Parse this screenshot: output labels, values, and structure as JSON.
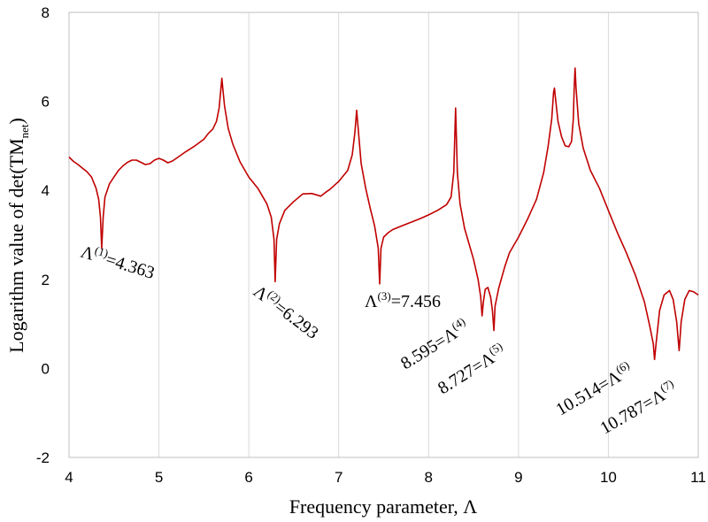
{
  "chart_data": {
    "type": "line",
    "title": "",
    "xlabel": "Frequency parameter, Λ",
    "ylabel": "Logarithm value of det(TM",
    "ylabel_sub": "net",
    "ylabel_close": ")",
    "xlim": [
      4,
      11
    ],
    "ylim": [
      -2,
      8
    ],
    "x_ticks": [
      4,
      5,
      6,
      7,
      8,
      9,
      10,
      11
    ],
    "y_ticks": [
      -2,
      0,
      2,
      4,
      6,
      8
    ],
    "grid": "vertical",
    "line_color": "#c00000",
    "series": [
      {
        "x": [
          4.0,
          4.05,
          4.1,
          4.15,
          4.2,
          4.25,
          4.3,
          4.33,
          4.35,
          4.363,
          4.38,
          4.4,
          4.45,
          4.5,
          4.55,
          4.6,
          4.65,
          4.7,
          4.75,
          4.8,
          4.85,
          4.9,
          4.95,
          5.0,
          5.05,
          5.1,
          5.15,
          5.2,
          5.3,
          5.4,
          5.5,
          5.55,
          5.6,
          5.64,
          5.67,
          5.69,
          5.7,
          5.71,
          5.73,
          5.77,
          5.82,
          5.9,
          6.0,
          6.1,
          6.2,
          6.25,
          6.28,
          6.293,
          6.31,
          6.34,
          6.4,
          6.5,
          6.6,
          6.7,
          6.8,
          6.85,
          6.9,
          7.0,
          7.1,
          7.15,
          7.18,
          7.2,
          7.22,
          7.25,
          7.3,
          7.35,
          7.4,
          7.44,
          7.456,
          7.47,
          7.5,
          7.55,
          7.6,
          7.7,
          7.8,
          7.9,
          8.0,
          8.1,
          8.2,
          8.25,
          8.28,
          8.3,
          8.32,
          8.35,
          8.4,
          8.45,
          8.5,
          8.55,
          8.58,
          8.595,
          8.61,
          8.63,
          8.66,
          8.69,
          8.71,
          8.727,
          8.74,
          8.78,
          8.85,
          8.9,
          9.0,
          9.1,
          9.2,
          9.28,
          9.33,
          9.37,
          9.39,
          9.4,
          9.41,
          9.44,
          9.48,
          9.52,
          9.56,
          9.59,
          9.61,
          9.62,
          9.63,
          9.64,
          9.67,
          9.72,
          9.8,
          9.9,
          10.0,
          10.1,
          10.2,
          10.3,
          10.4,
          10.46,
          10.5,
          10.514,
          10.53,
          10.57,
          10.62,
          10.68,
          10.72,
          10.76,
          10.787,
          10.81,
          10.85,
          10.9,
          10.95,
          11.0
        ],
        "y": [
          4.75,
          4.65,
          4.58,
          4.5,
          4.42,
          4.3,
          4.05,
          3.8,
          3.4,
          2.7,
          3.4,
          3.85,
          4.15,
          4.3,
          4.45,
          4.55,
          4.63,
          4.68,
          4.68,
          4.63,
          4.58,
          4.6,
          4.68,
          4.72,
          4.68,
          4.62,
          4.66,
          4.73,
          4.87,
          5.0,
          5.15,
          5.28,
          5.38,
          5.55,
          5.85,
          6.3,
          6.52,
          6.3,
          5.9,
          5.4,
          5.05,
          4.65,
          4.3,
          4.05,
          3.7,
          3.4,
          2.9,
          1.95,
          2.9,
          3.25,
          3.55,
          3.75,
          3.92,
          3.93,
          3.87,
          3.95,
          4.02,
          4.2,
          4.45,
          4.8,
          5.3,
          5.8,
          5.3,
          4.6,
          4.05,
          3.6,
          3.2,
          2.7,
          1.9,
          2.7,
          2.95,
          3.05,
          3.12,
          3.2,
          3.28,
          3.36,
          3.45,
          3.55,
          3.68,
          3.85,
          4.4,
          5.85,
          4.4,
          3.7,
          3.15,
          2.8,
          2.45,
          2.0,
          1.6,
          1.18,
          1.5,
          1.78,
          1.82,
          1.6,
          1.3,
          0.85,
          1.4,
          1.8,
          2.3,
          2.6,
          2.95,
          3.35,
          3.8,
          4.4,
          5.0,
          5.6,
          6.2,
          6.3,
          6.1,
          5.55,
          5.2,
          5.0,
          4.98,
          5.1,
          5.6,
          6.3,
          6.75,
          6.3,
          5.5,
          4.95,
          4.45,
          4.05,
          3.55,
          3.05,
          2.6,
          2.1,
          1.5,
          0.95,
          0.55,
          0.2,
          0.55,
          1.3,
          1.65,
          1.75,
          1.55,
          1.05,
          0.4,
          1.05,
          1.55,
          1.75,
          1.72,
          1.65
        ]
      }
    ],
    "annotations": [
      {
        "base": "Λ",
        "sup": "(1)",
        "tail": "=4.363"
      },
      {
        "base": "Λ",
        "sup": "(2)",
        "tail": "=6.293"
      },
      {
        "base": "Λ",
        "sup": "(3)",
        "tail": "=7.456"
      },
      {
        "base": "8.595=Λ",
        "sup": "(4)",
        "tail": ""
      },
      {
        "base": "8.727=Λ",
        "sup": "(5)",
        "tail": ""
      },
      {
        "base": "10.514=Λ",
        "sup": "(6)",
        "tail": ""
      },
      {
        "base": "10.787=Λ",
        "sup": "(7)",
        "tail": ""
      }
    ]
  }
}
